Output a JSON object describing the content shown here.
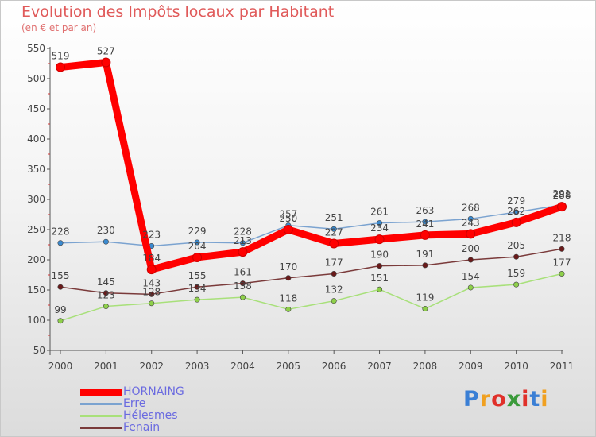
{
  "title": "Evolution des Impôts locaux par Habitant",
  "subtitle": "(en € et par an)",
  "logo": {
    "text": "Proxiti",
    "letters": [
      {
        "ch": "P",
        "color": "#3a7fd5"
      },
      {
        "ch": "r",
        "color": "#f0a020"
      },
      {
        "ch": "o",
        "color": "#e0302a"
      },
      {
        "ch": "x",
        "color": "#3a9a3a"
      },
      {
        "ch": "i",
        "color": "#e0302a"
      },
      {
        "ch": "t",
        "color": "#3a7fd5"
      },
      {
        "ch": "i",
        "color": "#f0a020"
      }
    ]
  },
  "chart_data": {
    "type": "line",
    "title": "Evolution des Impôts locaux par Habitant",
    "subtitle": "(en € et par an)",
    "xlabel": "",
    "ylabel": "",
    "ylim": [
      50,
      550
    ],
    "yticks": [
      50,
      100,
      150,
      200,
      250,
      300,
      350,
      400,
      450,
      500,
      550
    ],
    "grid": false,
    "legend": "bottom-left",
    "categories": [
      "2000",
      "2001",
      "2002",
      "2003",
      "2004",
      "2005",
      "2006",
      "2007",
      "2008",
      "2009",
      "2010",
      "2011"
    ],
    "series": [
      {
        "name": "HORNAING",
        "color": "#ff0000",
        "values": [
          519,
          527,
          184,
          204,
          213,
          250,
          227,
          234,
          241,
          243,
          262,
          288
        ]
      },
      {
        "name": "Erre",
        "color": "#7ba3d0",
        "values": [
          228,
          230,
          223,
          229,
          228,
          257,
          251,
          261,
          263,
          268,
          279,
          291
        ]
      },
      {
        "name": "Hélesmes",
        "color": "#a8e07a",
        "values": [
          99,
          123,
          128,
          134,
          138,
          118,
          132,
          151,
          119,
          154,
          159,
          177
        ]
      },
      {
        "name": "Fenain",
        "color": "#7a3a3a",
        "values": [
          155,
          145,
          143,
          155,
          161,
          170,
          177,
          190,
          191,
          200,
          205,
          218
        ]
      }
    ]
  }
}
